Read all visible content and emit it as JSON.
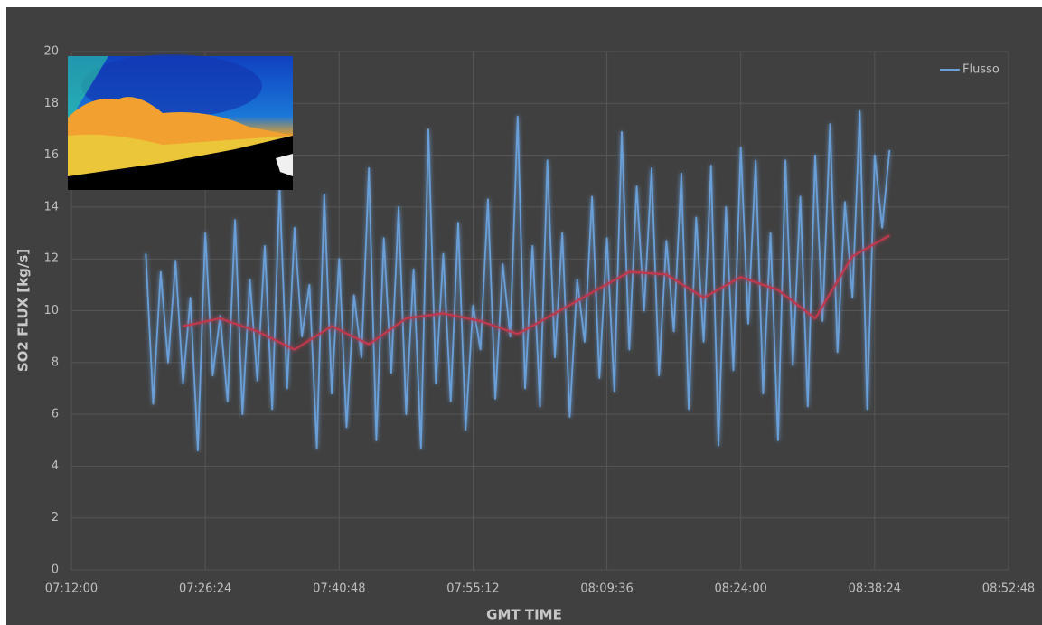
{
  "chart_data": {
    "type": "line",
    "y_label": "SO2 FLUX [kg/s]",
    "x_label": "GMT TIME",
    "xlim": [
      "07:12:00",
      "08:52:48"
    ],
    "xticks": [
      "07:12:00",
      "07:26:24",
      "07:40:48",
      "07:55:12",
      "08:09:36",
      "08:24:00",
      "08:38:24",
      "08:52:48"
    ],
    "ylim": [
      0,
      20
    ],
    "yticks": [
      0,
      2,
      4,
      6,
      8,
      10,
      12,
      14,
      16,
      18,
      20
    ],
    "grid": true,
    "legend": "top-right",
    "series": [
      {
        "name": "Flusso",
        "color": "#6a9fd8",
        "x": [
          "07:20:00",
          "07:20:48",
          "07:21:36",
          "07:22:24",
          "07:23:12",
          "07:24:00",
          "07:24:48",
          "07:25:36",
          "07:26:24",
          "07:27:12",
          "07:28:00",
          "07:28:48",
          "07:29:36",
          "07:30:24",
          "07:31:12",
          "07:32:00",
          "07:32:48",
          "07:33:36",
          "07:34:24",
          "07:35:12",
          "07:36:00",
          "07:36:48",
          "07:37:36",
          "07:38:24",
          "07:39:12",
          "07:40:00",
          "07:40:48",
          "07:41:36",
          "07:42:24",
          "07:43:12",
          "07:44:00",
          "07:44:48",
          "07:45:36",
          "07:46:24",
          "07:47:12",
          "07:48:00",
          "07:48:48",
          "07:49:36",
          "07:50:24",
          "07:51:12",
          "07:52:00",
          "07:52:48",
          "07:53:36",
          "07:54:24",
          "07:55:12",
          "07:56:00",
          "07:56:48",
          "07:57:36",
          "07:58:24",
          "07:59:12",
          "08:00:00",
          "08:00:48",
          "08:01:36",
          "08:02:24",
          "08:03:12",
          "08:04:00",
          "08:04:48",
          "08:05:36",
          "08:06:24",
          "08:07:12",
          "08:08:00",
          "08:08:48",
          "08:09:36",
          "08:10:24",
          "08:11:12",
          "08:12:00",
          "08:12:48",
          "08:13:36",
          "08:14:24",
          "08:15:12",
          "08:16:00",
          "08:16:48",
          "08:17:36",
          "08:18:24",
          "08:19:12",
          "08:20:00",
          "08:20:48",
          "08:21:36",
          "08:22:24",
          "08:23:12",
          "08:24:00",
          "08:24:48",
          "08:25:36",
          "08:26:24",
          "08:27:12",
          "08:28:00",
          "08:28:48",
          "08:29:36",
          "08:30:24",
          "08:31:12",
          "08:32:00",
          "08:32:48",
          "08:33:36",
          "08:34:24",
          "08:35:12",
          "08:36:00",
          "08:36:48",
          "08:37:36",
          "08:38:24",
          "08:39:12",
          "08:40:00"
        ],
        "values": [
          12.2,
          6.4,
          11.5,
          8,
          11.9,
          7.2,
          10.5,
          4.6,
          13,
          7.5,
          9.8,
          6.5,
          13.5,
          6,
          11.2,
          7.3,
          12.5,
          6.2,
          14.8,
          7,
          13.2,
          9,
          11,
          4.7,
          14.5,
          6.8,
          12,
          5.5,
          10.6,
          8.2,
          15.5,
          5,
          12.8,
          7.6,
          14,
          6,
          11.6,
          4.7,
          17,
          7.2,
          12.2,
          6.5,
          13.4,
          5.4,
          10.2,
          8.5,
          14.3,
          6.6,
          11.8,
          9,
          17.5,
          7,
          12.5,
          6.3,
          15.8,
          8.2,
          13,
          5.9,
          11.2,
          8.8,
          14.4,
          7.4,
          12.8,
          6.9,
          16.9,
          8.5,
          14.8,
          10,
          15.5,
          7.5,
          12.7,
          9.2,
          15.3,
          6.2,
          13.6,
          8.8,
          15.6,
          4.8,
          14,
          7.7,
          16.3,
          9.5,
          15.8,
          6.8,
          13,
          5,
          15.8,
          7.9,
          14.4,
          6.3,
          16,
          9.6,
          17.2,
          8.4,
          14.2,
          10.5,
          17.7,
          6.2,
          16,
          13.2,
          16.2
        ]
      },
      {
        "color": "#c0394d",
        "x": [
          "07:24:00",
          "07:28:00",
          "07:32:00",
          "07:36:00",
          "07:40:00",
          "07:44:00",
          "07:48:00",
          "07:52:00",
          "07:56:00",
          "08:00:00",
          "08:04:00",
          "08:08:00",
          "08:12:00",
          "08:16:00",
          "08:20:00",
          "08:24:00",
          "08:28:00",
          "08:32:00",
          "08:36:00",
          "08:40:00"
        ],
        "values": [
          9.4,
          9.7,
          9.2,
          8.5,
          9.4,
          8.7,
          9.7,
          9.9,
          9.6,
          9.1,
          9.9,
          10.7,
          11.5,
          11.4,
          10.5,
          11.3,
          10.8,
          9.7,
          12.1,
          12.9
        ]
      }
    ]
  }
}
